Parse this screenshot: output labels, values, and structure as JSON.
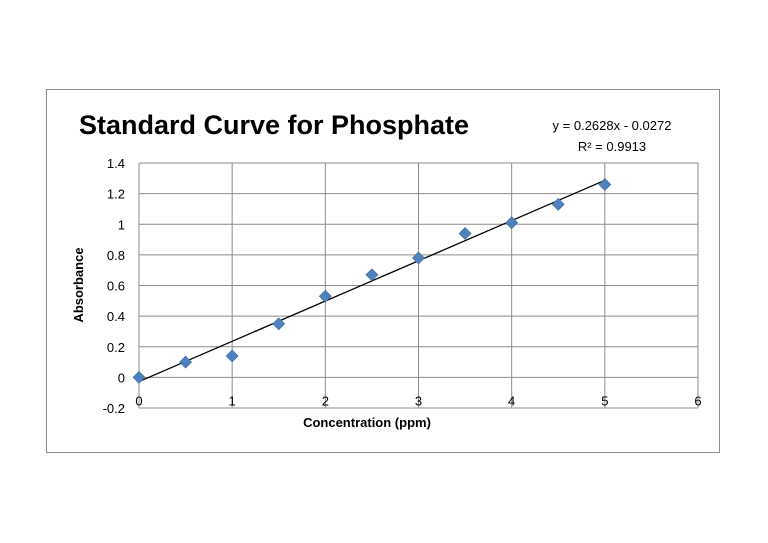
{
  "chart_data": {
    "type": "scatter",
    "title": "Standard Curve for Phosphate",
    "xlabel": "Concentration (ppm)",
    "ylabel": "Absorbance",
    "xlim": [
      0,
      6
    ],
    "ylim": [
      -0.2,
      1.4
    ],
    "x_ticks": [
      "0",
      "1",
      "2",
      "3",
      "4",
      "5",
      "6"
    ],
    "y_ticks": [
      "-0.2",
      "0",
      "0.2",
      "0.4",
      "0.6",
      "0.8",
      "1",
      "1.2",
      "1.4"
    ],
    "grid": true,
    "series": [
      {
        "x": [
          0,
          0.5,
          1,
          1.5,
          2,
          2.5,
          3,
          3.5,
          4,
          4.5,
          5
        ],
        "y": [
          0,
          0.1,
          0.14,
          0.35,
          0.53,
          0.67,
          0.78,
          0.94,
          1.01,
          1.13,
          1.26
        ],
        "color": "#4f81bd",
        "marker": "diamond"
      }
    ],
    "trendline": {
      "type": "linear",
      "slope": 0.2628,
      "intercept": -0.0272,
      "x_range": [
        0,
        5
      ],
      "equation": "y = 0.2628x - 0.0272",
      "r_squared": "R² = 0.9913"
    }
  }
}
